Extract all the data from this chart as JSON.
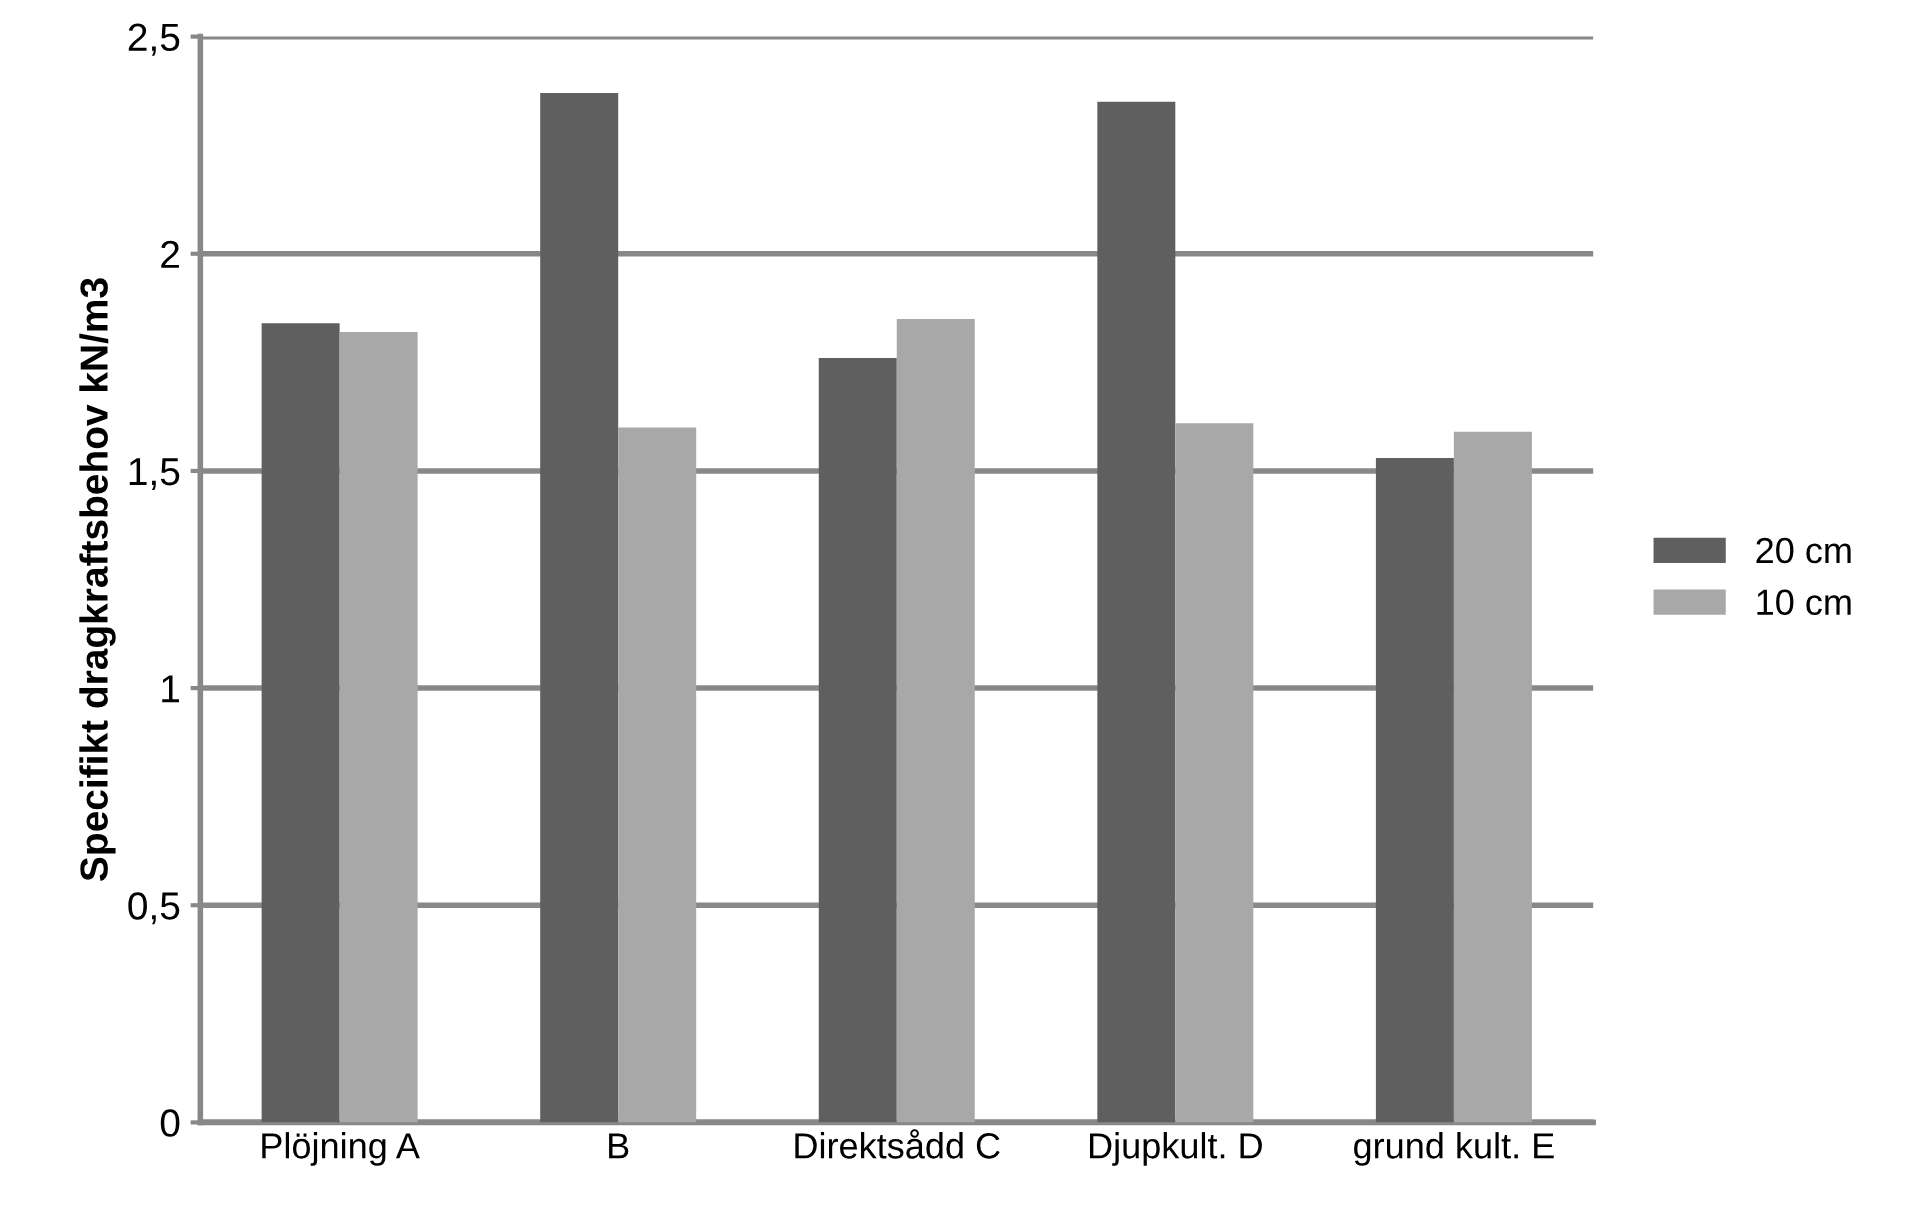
{
  "chart_data": {
    "type": "bar",
    "ylabel": "Specifikt dragkraftsbehov kN/m3",
    "categories": [
      "Plöjning A",
      "B",
      "Direktsådd C",
      "Djupkult. D",
      "grund kult. E"
    ],
    "series": [
      {
        "name": "20 cm",
        "color": "#5f5f5f",
        "values": [
          1.84,
          2.37,
          1.76,
          2.35,
          1.53
        ]
      },
      {
        "name": "10 cm",
        "color": "#a8a8a8",
        "values": [
          1.82,
          1.6,
          1.85,
          1.61,
          1.59
        ]
      }
    ],
    "ylim": [
      0,
      2.5
    ],
    "yticks": [
      0,
      {
        "value": 0.5,
        "label": "0,5"
      },
      1,
      {
        "value": 1.5,
        "label": "1,5"
      },
      2,
      {
        "value": 2.5,
        "label": "2,5"
      }
    ],
    "grid": "y",
    "legend": "right"
  }
}
